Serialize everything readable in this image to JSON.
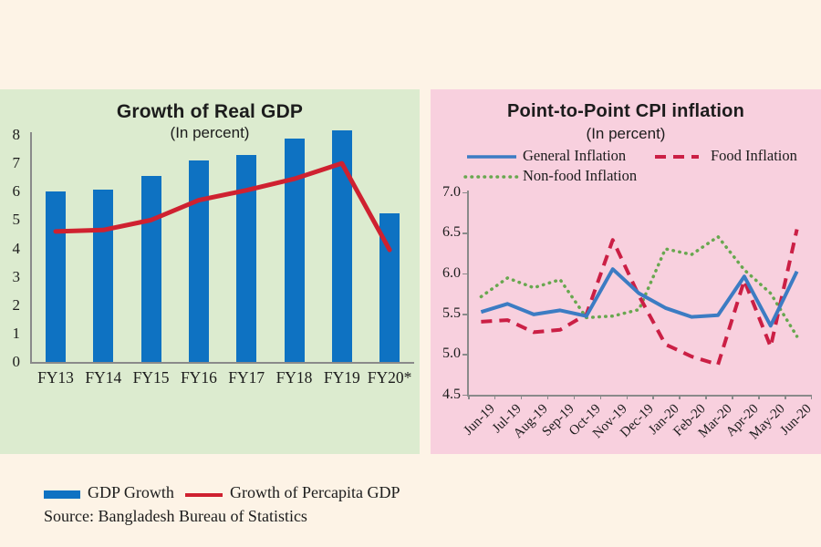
{
  "colors": {
    "page_bg": "#fdf3e6",
    "left_panel_bg": "#dcebcf",
    "right_panel_bg": "#f8d0de",
    "axis": "#8a8a8a",
    "text": "#1c1c1c",
    "bar_blue": "#0e72c2",
    "percapita_red": "#cf2130",
    "general_blue": "#3c7cc3",
    "food_red": "#cb1f45",
    "nonfood_green": "#68a74f"
  },
  "chart_data": [
    {
      "type": "bar",
      "title": "Growth of Real GDP",
      "subtitle": "(In percent)",
      "categories": [
        "FY13",
        "FY14",
        "FY15",
        "FY16",
        "FY17",
        "FY18",
        "FY19",
        "FY20*"
      ],
      "series": [
        {
          "name": "GDP Growth",
          "type": "bar",
          "color": "#0e72c2",
          "values": [
            6.01,
            6.06,
            6.55,
            7.11,
            7.28,
            7.86,
            8.15,
            5.24
          ]
        },
        {
          "name": "Growth of Percapita GDP",
          "type": "line",
          "color": "#cf2130",
          "values": [
            4.6,
            4.65,
            5.0,
            5.7,
            6.05,
            6.45,
            7.0,
            3.95
          ]
        }
      ],
      "ylim": [
        0,
        8
      ],
      "y_ticks": [
        0,
        1,
        2,
        3,
        4,
        5,
        6,
        7,
        8
      ],
      "grid": false,
      "legend_position": "bottom",
      "source": "Source: Bangladesh Bureau of Statistics"
    },
    {
      "type": "line",
      "title": "Point-to-Point CPI inflation",
      "subtitle": "(In percent)",
      "x": [
        "Jun-19",
        "Jul-19",
        "Aug-19",
        "Sep-19",
        "Oct-19",
        "Nov-19",
        "Dec-19",
        "Jan-20",
        "Feb-20",
        "Mar-20",
        "Apr-20",
        "May-20",
        "Jun-20"
      ],
      "series": [
        {
          "name": "General Inflation",
          "style": "solid",
          "color": "#3c7cc3",
          "values": [
            5.52,
            5.62,
            5.49,
            5.54,
            5.47,
            6.05,
            5.75,
            5.57,
            5.46,
            5.48,
            5.96,
            5.35,
            6.02
          ]
        },
        {
          "name": "Food Inflation",
          "style": "dashed",
          "color": "#cb1f45",
          "values": [
            5.4,
            5.42,
            5.27,
            5.3,
            5.49,
            6.41,
            5.72,
            5.12,
            4.97,
            4.87,
            5.91,
            5.09,
            6.54
          ]
        },
        {
          "name": "Non-food Inflation",
          "style": "dotted",
          "color": "#68a74f",
          "values": [
            5.71,
            5.94,
            5.82,
            5.92,
            5.45,
            5.47,
            5.55,
            6.3,
            6.23,
            6.45,
            6.04,
            5.75,
            5.22
          ]
        }
      ],
      "ylim": [
        4.5,
        7.0
      ],
      "y_ticks": [
        4.5,
        5.0,
        5.5,
        6.0,
        6.5,
        7.0
      ],
      "grid": false,
      "legend_position": "top"
    }
  ]
}
